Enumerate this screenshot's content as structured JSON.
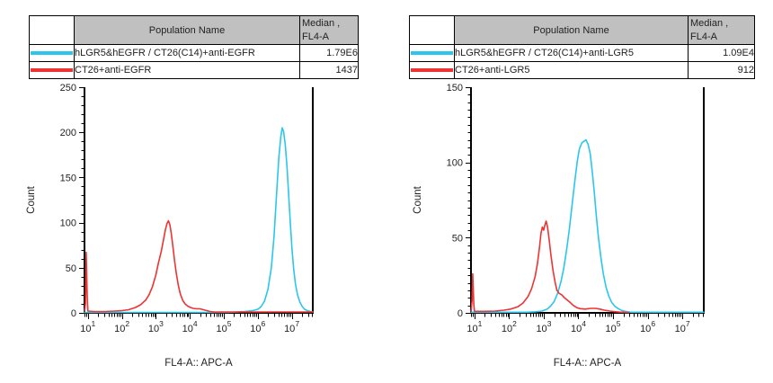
{
  "colors": {
    "curve_cyan": "#2BC6EE",
    "curve_red": "#EE3333",
    "table_header_bg": "#C0C0C0",
    "axis": "#000000"
  },
  "legends": [
    {
      "header": {
        "name": "Population Name",
        "median_line1": "Median ,",
        "median_line2": "FL4-A"
      },
      "rows": [
        {
          "color": "#2BC6EE",
          "name": "hLGR5&hEGFR / CT26(C14)+anti-EGFR",
          "median": "1.79E6"
        },
        {
          "color": "#EE3333",
          "name": "CT26+anti-EGFR",
          "median": "1437"
        }
      ]
    },
    {
      "header": {
        "name": "Population Name",
        "median_line1": "Median ,",
        "median_line2": "FL4-A"
      },
      "rows": [
        {
          "color": "#2BC6EE",
          "name": "hLGR5&hEGFR / CT26(C14)+anti-LGR5",
          "median": "1.09E4"
        },
        {
          "color": "#EE3333",
          "name": "CT26+anti-LGR5",
          "median": "912"
        }
      ]
    }
  ],
  "chart_data": [
    {
      "type": "line",
      "title": "",
      "xlabel": "FL4-A:: APC-A",
      "ylabel": "Count",
      "x_scale": "log10",
      "xlim_log10": [
        0.9,
        7.62
      ],
      "x_tick_exponents": [
        1,
        2,
        3,
        4,
        5,
        6,
        7
      ],
      "ylim": [
        0,
        250
      ],
      "y_ticks": [
        0,
        50,
        100,
        150,
        200,
        250
      ],
      "y_minor_step": 10,
      "grid": false,
      "legend_position": "table-above",
      "series": [
        {
          "name": "hLGR5&hEGFR / CT26(C14)+anti-EGFR",
          "color": "#2BC6EE",
          "median": "1.79E6",
          "points": [
            [
              0.9,
              0.5
            ],
            [
              4.9,
              0.5
            ],
            [
              5.3,
              0.8
            ],
            [
              5.6,
              1.5
            ],
            [
              5.85,
              2.5
            ],
            [
              6.0,
              4
            ],
            [
              6.1,
              7
            ],
            [
              6.2,
              13
            ],
            [
              6.3,
              26
            ],
            [
              6.4,
              50
            ],
            [
              6.48,
              85
            ],
            [
              6.55,
              130
            ],
            [
              6.62,
              172
            ],
            [
              6.68,
              196
            ],
            [
              6.72,
              205
            ],
            [
              6.76,
              201
            ],
            [
              6.81,
              186
            ],
            [
              6.86,
              162
            ],
            [
              6.91,
              130
            ],
            [
              6.96,
              98
            ],
            [
              7.01,
              70
            ],
            [
              7.06,
              48
            ],
            [
              7.11,
              32
            ],
            [
              7.17,
              20
            ],
            [
              7.24,
              12
            ],
            [
              7.31,
              7
            ],
            [
              7.38,
              4
            ],
            [
              7.46,
              2.5
            ],
            [
              7.55,
              1.5
            ],
            [
              7.62,
              1
            ]
          ]
        },
        {
          "name": "CT26+anti-EGFR",
          "color": "#EE3333",
          "median": "1437",
          "points": [
            [
              0.9,
              2
            ],
            [
              0.93,
              10
            ],
            [
              0.95,
              67
            ],
            [
              0.98,
              20
            ],
            [
              1.0,
              2
            ],
            [
              1.2,
              1.5
            ],
            [
              1.5,
              1.5
            ],
            [
              1.8,
              2
            ],
            [
              2.0,
              2.5
            ],
            [
              2.2,
              3.5
            ],
            [
              2.4,
              6
            ],
            [
              2.55,
              9
            ],
            [
              2.7,
              14
            ],
            [
              2.8,
              20
            ],
            [
              2.9,
              29
            ],
            [
              3.0,
              42
            ],
            [
              3.08,
              56
            ],
            [
              3.12,
              62
            ],
            [
              3.16,
              68
            ],
            [
              3.22,
              80
            ],
            [
              3.28,
              92
            ],
            [
              3.33,
              99
            ],
            [
              3.37,
              102
            ],
            [
              3.41,
              98
            ],
            [
              3.45,
              89
            ],
            [
              3.5,
              74
            ],
            [
              3.55,
              58
            ],
            [
              3.6,
              44
            ],
            [
              3.66,
              31
            ],
            [
              3.72,
              21
            ],
            [
              3.79,
              14
            ],
            [
              3.86,
              10
            ],
            [
              3.94,
              7.5
            ],
            [
              4.02,
              6
            ],
            [
              4.1,
              5
            ],
            [
              4.2,
              4.5
            ],
            [
              4.3,
              4.5
            ],
            [
              4.4,
              3.5
            ],
            [
              4.5,
              2.5
            ],
            [
              4.6,
              1.5
            ],
            [
              4.72,
              1
            ],
            [
              5.0,
              1
            ],
            [
              5.5,
              1
            ],
            [
              6.2,
              1
            ],
            [
              7.0,
              1
            ],
            [
              7.62,
              1
            ]
          ]
        }
      ]
    },
    {
      "type": "line",
      "title": "",
      "xlabel": "FL4-A:: APC-A",
      "ylabel": "Count",
      "x_scale": "log10",
      "xlim_log10": [
        0.9,
        7.62
      ],
      "x_tick_exponents": [
        1,
        2,
        3,
        4,
        5,
        6,
        7
      ],
      "ylim": [
        0,
        150
      ],
      "y_ticks": [
        0,
        50,
        100,
        150
      ],
      "y_minor_step": 5,
      "grid": false,
      "legend_position": "table-above",
      "series": [
        {
          "name": "hLGR5&hEGFR / CT26(C14)+anti-LGR5",
          "color": "#2BC6EE",
          "median": "1.09E4",
          "points": [
            [
              0.9,
              0.4
            ],
            [
              2.5,
              0.4
            ],
            [
              2.75,
              0.7
            ],
            [
              2.95,
              1.2
            ],
            [
              3.1,
              2.5
            ],
            [
              3.2,
              4.5
            ],
            [
              3.3,
              7.5
            ],
            [
              3.4,
              13
            ],
            [
              3.5,
              21
            ],
            [
              3.58,
              30
            ],
            [
              3.66,
              42
            ],
            [
              3.74,
              56
            ],
            [
              3.82,
              72
            ],
            [
              3.9,
              88
            ],
            [
              3.97,
              101
            ],
            [
              4.03,
              109
            ],
            [
              4.1,
              113
            ],
            [
              4.16,
              114
            ],
            [
              4.22,
              115
            ],
            [
              4.28,
              112
            ],
            [
              4.34,
              106
            ],
            [
              4.4,
              94
            ],
            [
              4.46,
              80
            ],
            [
              4.52,
              64
            ],
            [
              4.58,
              50
            ],
            [
              4.65,
              37
            ],
            [
              4.72,
              26
            ],
            [
              4.8,
              17
            ],
            [
              4.88,
              11
            ],
            [
              4.96,
              7
            ],
            [
              5.05,
              4.5
            ],
            [
              5.15,
              2.8
            ],
            [
              5.25,
              1.6
            ],
            [
              5.35,
              1
            ],
            [
              5.5,
              0.5
            ],
            [
              5.7,
              0.4
            ],
            [
              7.62,
              0.4
            ]
          ]
        },
        {
          "name": "CT26+anti-LGR5",
          "color": "#EE3333",
          "median": "912",
          "points": [
            [
              0.9,
              1
            ],
            [
              0.93,
              8
            ],
            [
              0.95,
              26
            ],
            [
              0.98,
              6
            ],
            [
              1.0,
              1
            ],
            [
              1.3,
              1
            ],
            [
              1.6,
              1.2
            ],
            [
              1.85,
              1.8
            ],
            [
              2.05,
              2.5
            ],
            [
              2.25,
              4
            ],
            [
              2.4,
              6.5
            ],
            [
              2.55,
              11
            ],
            [
              2.65,
              16
            ],
            [
              2.75,
              24
            ],
            [
              2.82,
              33
            ],
            [
              2.88,
              44
            ],
            [
              2.92,
              53
            ],
            [
              2.96,
              57
            ],
            [
              3.0,
              55
            ],
            [
              3.03,
              58
            ],
            [
              3.07,
              61
            ],
            [
              3.11,
              57
            ],
            [
              3.16,
              48
            ],
            [
              3.21,
              38
            ],
            [
              3.27,
              28
            ],
            [
              3.33,
              20
            ],
            [
              3.38,
              15
            ],
            [
              3.44,
              13
            ],
            [
              3.52,
              12
            ],
            [
              3.6,
              10
            ],
            [
              3.68,
              8.5
            ],
            [
              3.76,
              7
            ],
            [
              3.85,
              5
            ],
            [
              3.95,
              3.5
            ],
            [
              4.05,
              2.8
            ],
            [
              4.2,
              2.5
            ],
            [
              4.35,
              3
            ],
            [
              4.5,
              3
            ],
            [
              4.62,
              2.5
            ],
            [
              4.75,
              1.8
            ],
            [
              4.9,
              1.2
            ],
            [
              5.05,
              0.8
            ],
            [
              5.2,
              0.5
            ],
            [
              5.45,
              0.2
            ]
          ]
        }
      ]
    }
  ]
}
